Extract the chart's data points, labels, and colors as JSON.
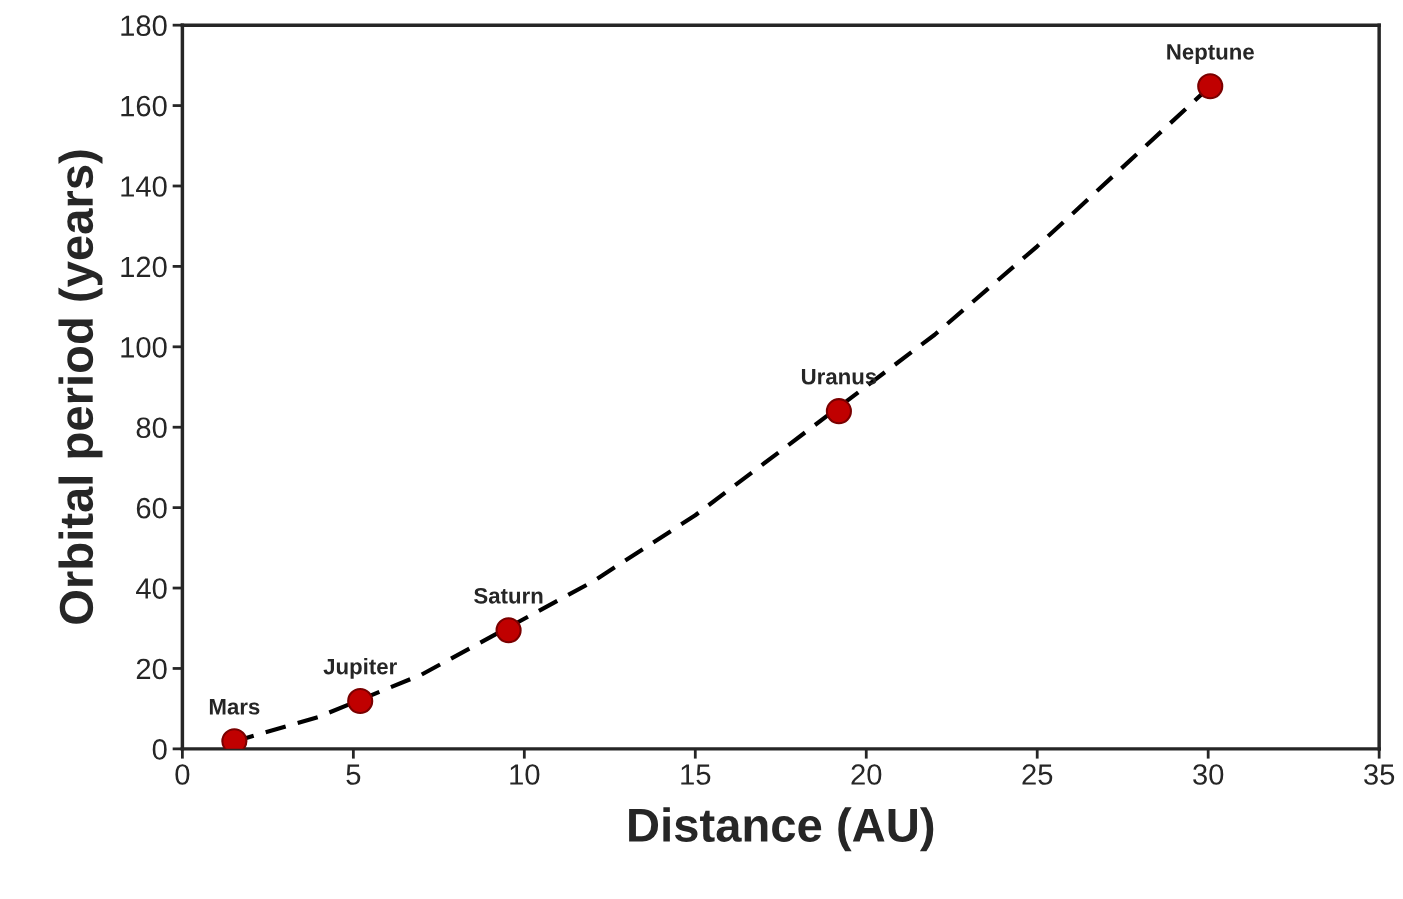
{
  "chart_data": {
    "type": "scatter",
    "xlabel": "Distance (AU)",
    "ylabel": "Orbital period (years)",
    "xlim": [
      0,
      35
    ],
    "xticks": [
      0,
      5,
      10,
      15,
      20,
      25,
      30,
      35
    ],
    "ylim": [
      0,
      180
    ],
    "yticks": [
      0,
      20,
      40,
      60,
      80,
      100,
      120,
      140,
      160,
      180
    ],
    "grid": false,
    "legend": false,
    "series": [
      {
        "color": "#c00000",
        "marker": "circle",
        "x": [
          1.52,
          5.2,
          9.54,
          19.2,
          30.06
        ],
        "values": [
          1.9,
          11.9,
          29.5,
          84,
          164.8
        ]
      },
      {
        "type": "line",
        "color": "#000000",
        "line_style": "dashed",
        "marker": "none",
        "x": [
          1.5,
          4,
          7,
          12,
          15,
          22,
          25,
          30.06
        ],
        "values": [
          1.8,
          8,
          18.5,
          41.6,
          58.1,
          103,
          125,
          164.8
        ]
      }
    ],
    "annotations": [
      {
        "text": "Mars",
        "x": 1.52,
        "y": 1.9
      },
      {
        "text": "Jupiter",
        "x": 5.2,
        "y": 11.9
      },
      {
        "text": "Saturn",
        "x": 9.54,
        "y": 29.5
      },
      {
        "text": "Uranus",
        "x": 19.2,
        "y": 84
      },
      {
        "text": "Neptune",
        "x": 30.06,
        "y": 164.8
      }
    ]
  }
}
